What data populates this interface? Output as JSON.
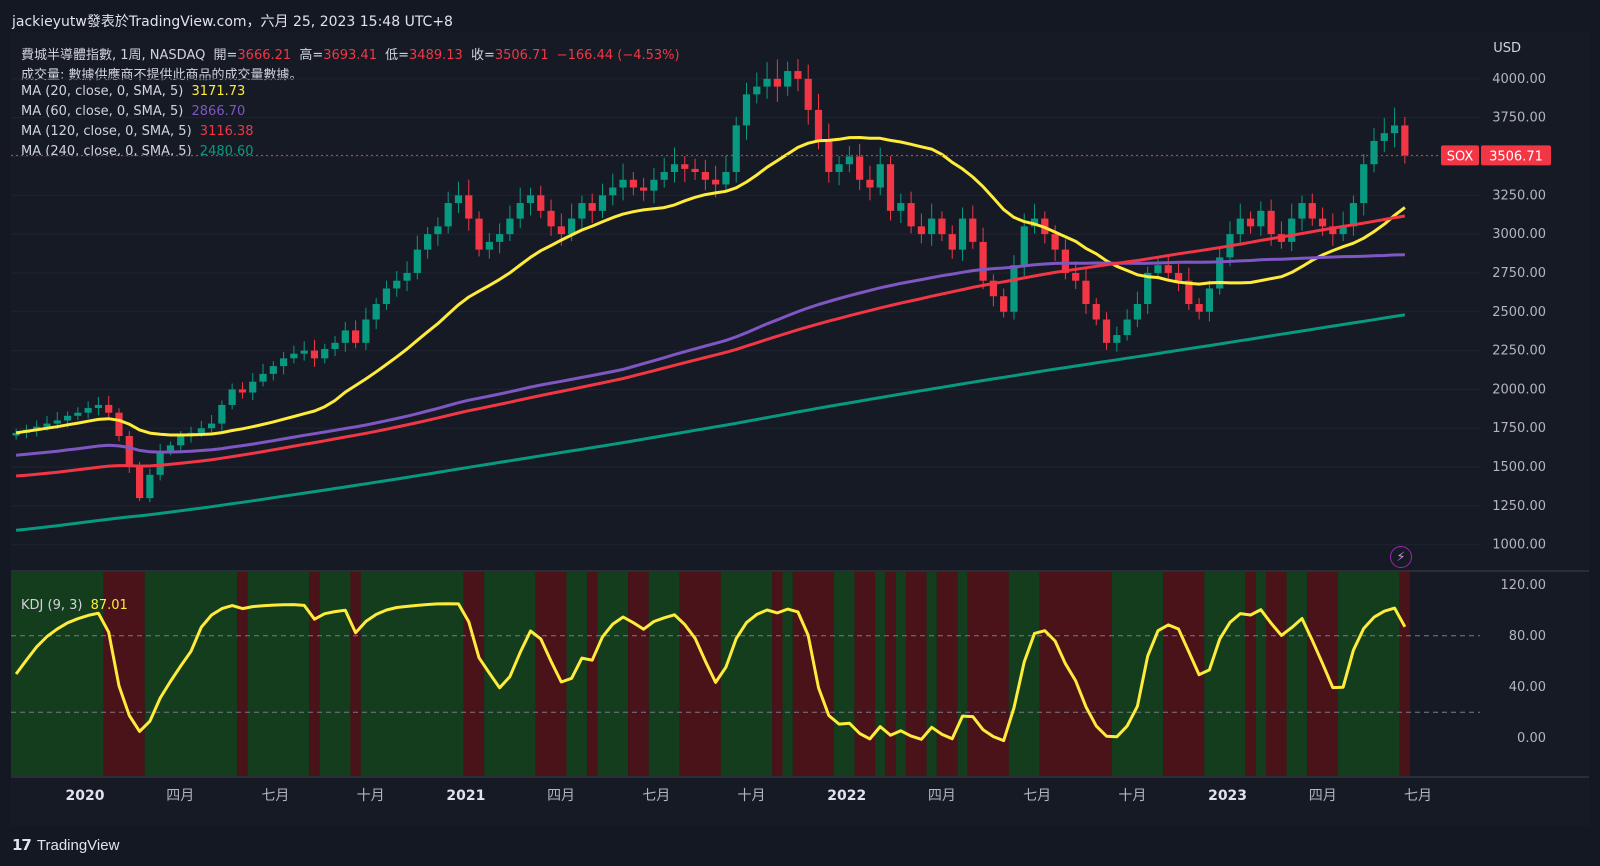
{
  "header": {
    "publisher_line": "jackieyutw發表於TradingView.com，六月 25, 2023 15:48 UTC+8"
  },
  "legend": {
    "ohlc": {
      "symbol_desc": "費城半導體指數, 1周, NASDAQ",
      "open_label": "開=",
      "open": "3666.21",
      "high_label": "高=",
      "high": "3693.41",
      "low_label": "低=",
      "low": "3489.13",
      "close_label": "收=",
      "close": "3506.71",
      "change": "−166.44 (−4.53%)"
    },
    "volume": "成交量: 數據供應商不提供此商品的成交量數據。",
    "ma20": {
      "label": "MA (20, close, 0, SMA, 5)",
      "value": "3171.73"
    },
    "ma60": {
      "label": "MA (60, close, 0, SMA, 5)",
      "value": "2866.70"
    },
    "ma120": {
      "label": "MA (120, close, 0, SMA, 5)",
      "value": "3116.38"
    },
    "ma240": {
      "label": "MA (240, close, 0, SMA, 5)",
      "value": "2480.60"
    },
    "kdj": {
      "label": "KDJ (9, 3)",
      "value": "87.01"
    }
  },
  "price_axis": {
    "currency": "USD",
    "ticks": [
      "4000.00",
      "3750.00",
      "3500.00",
      "3250.00",
      "3000.00",
      "2750.00",
      "2500.00",
      "2250.00",
      "2000.00",
      "1750.00",
      "1500.00",
      "1250.00",
      "1000.00"
    ],
    "last_label": "SOX",
    "last_value": "3506.71"
  },
  "kdj_axis": {
    "ticks": [
      "120.00",
      "80.00",
      "40.00",
      "0.00"
    ]
  },
  "time_axis": {
    "labels": [
      "2020",
      "四月",
      "七月",
      "十月",
      "2021",
      "四月",
      "七月",
      "十月",
      "2022",
      "四月",
      "七月",
      "十月",
      "2023",
      "四月",
      "七月"
    ]
  },
  "footer": {
    "brand": "TradingView"
  },
  "colors": {
    "up": "#089981",
    "down": "#f23645",
    "ma20": "#ffeb3b",
    "ma60": "#7e57c2",
    "ma120": "#f23645",
    "ma240": "#089981",
    "kdj": "#ffeb3b",
    "bg_green": "#133d1d",
    "bg_red": "#4a1219"
  },
  "chart_data": {
    "type": "candlestick",
    "title": "費城半導體指數, 1周, NASDAQ",
    "ylabel": "USD",
    "ylim": [
      850,
      4250
    ],
    "interval": "1W",
    "close_path": [
      1720,
      1740,
      1760,
      1780,
      1800,
      1830,
      1850,
      1880,
      1900,
      1850,
      1700,
      1500,
      1300,
      1450,
      1600,
      1640,
      1700,
      1720,
      1750,
      1780,
      1900,
      2000,
      1980,
      2050,
      2100,
      2150,
      2200,
      2230,
      2250,
      2200,
      2260,
      2300,
      2380,
      2300,
      2450,
      2550,
      2650,
      2700,
      2750,
      2900,
      3000,
      3050,
      3200,
      3250,
      3100,
      2900,
      2950,
      3000,
      3100,
      3200,
      3250,
      3150,
      3050,
      3000,
      3100,
      3200,
      3150,
      3250,
      3300,
      3350,
      3300,
      3280,
      3350,
      3400,
      3450,
      3420,
      3400,
      3350,
      3320,
      3400,
      3700,
      3900,
      3950,
      4000,
      3950,
      4050,
      4000,
      3800,
      3600,
      3400,
      3450,
      3500,
      3350,
      3300,
      3450,
      3150,
      3200,
      3050,
      3000,
      3100,
      3000,
      2900,
      3100,
      2950,
      2700,
      2600,
      2500,
      2800,
      3050,
      3100,
      3000,
      2900,
      2750,
      2700,
      2550,
      2450,
      2300,
      2350,
      2450,
      2550,
      2750,
      2800,
      2750,
      2700,
      2550,
      2500,
      2650,
      2850,
      3000,
      3100,
      3050,
      3150,
      3000,
      2950,
      3100,
      3200,
      3100,
      3050,
      3000,
      3050,
      3200,
      3450,
      3600,
      3650,
      3700,
      3506.71
    ],
    "ma_series": [
      {
        "name": "MA (20, close, 0, SMA, 5)",
        "last": 3171.73
      },
      {
        "name": "MA (60, close, 0, SMA, 5)",
        "last": 2866.7
      },
      {
        "name": "MA (120, close, 0, SMA, 5)",
        "last": 3116.38
      },
      {
        "name": "MA (240, close, 0, SMA, 5)",
        "last": 2480.6
      }
    ],
    "kdj": {
      "name": "KDJ (9, 3)",
      "last": 87.01,
      "ylim": [
        -30,
        130
      ],
      "levels": [
        80,
        20
      ]
    }
  }
}
